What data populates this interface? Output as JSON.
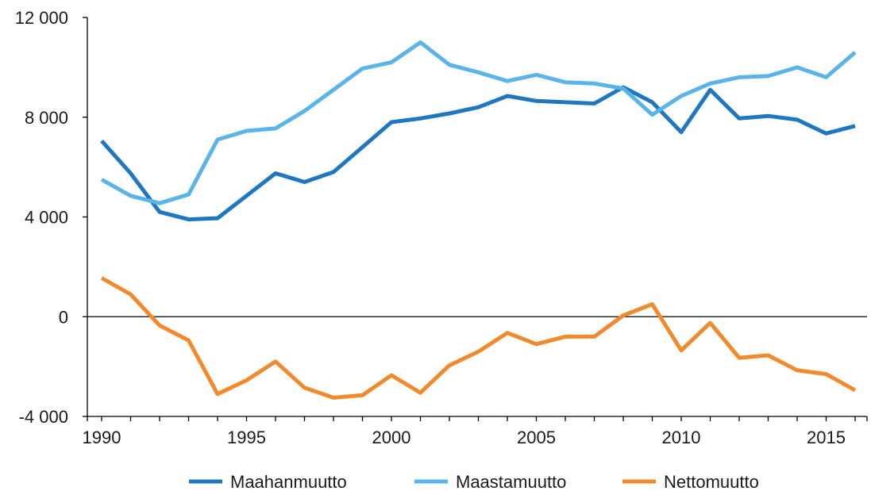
{
  "chart_data": {
    "type": "line",
    "title": "",
    "xlabel": "",
    "ylabel": "",
    "ylim": [
      -4000,
      12000
    ],
    "xlim": [
      1990,
      2016
    ],
    "y_ticks": [
      {
        "value": -4000,
        "label": "-4 000"
      },
      {
        "value": 0,
        "label": "0"
      },
      {
        "value": 4000,
        "label": "4 000"
      },
      {
        "value": 8000,
        "label": "8 000"
      },
      {
        "value": 12000,
        "label": "12 000"
      }
    ],
    "x_ticks": [
      {
        "value": 1990,
        "label": "1990"
      },
      {
        "value": 1995,
        "label": "1995"
      },
      {
        "value": 2000,
        "label": "2000"
      },
      {
        "value": 2005,
        "label": "2005"
      },
      {
        "value": 2010,
        "label": "2010"
      },
      {
        "value": 2015,
        "label": "2015"
      }
    ],
    "grid": false,
    "zero_line": true,
    "legend_position": "bottom",
    "x": [
      1990,
      1991,
      1992,
      1993,
      1994,
      1995,
      1996,
      1997,
      1998,
      1999,
      2000,
      2001,
      2002,
      2003,
      2004,
      2005,
      2006,
      2007,
      2008,
      2009,
      2010,
      2011,
      2012,
      2013,
      2014,
      2015,
      2016
    ],
    "series": [
      {
        "name": "Maahanmuutto",
        "color": "#1f77c0",
        "values": [
          7050,
          5750,
          4200,
          3900,
          3950,
          4850,
          5750,
          5400,
          5800,
          6800,
          7800,
          7950,
          8150,
          8400,
          8850,
          8650,
          8600,
          8550,
          9200,
          8600,
          7400,
          9100,
          7950,
          8050,
          7900,
          7350,
          7650
        ]
      },
      {
        "name": "Maastamuutto",
        "color": "#5bb4e8",
        "values": [
          5500,
          4850,
          4550,
          4900,
          7100,
          7450,
          7550,
          8250,
          9100,
          9950,
          10200,
          11000,
          10100,
          9800,
          9450,
          9700,
          9400,
          9350,
          9150,
          8100,
          8850,
          9350,
          9600,
          9650,
          10000,
          9600,
          10600
        ]
      },
      {
        "name": "Nettomuutto",
        "color": "#f08a2c",
        "values": [
          1550,
          900,
          -350,
          -950,
          -3100,
          -2550,
          -1800,
          -2850,
          -3250,
          -3150,
          -2350,
          -3050,
          -1950,
          -1400,
          -650,
          -1100,
          -800,
          -800,
          50,
          500,
          -1350,
          -250,
          -1650,
          -1550,
          -2150,
          -2300,
          -2950
        ]
      }
    ]
  }
}
